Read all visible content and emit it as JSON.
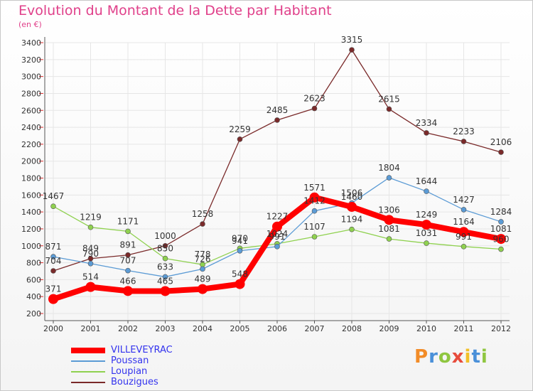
{
  "title": "Evolution du Montant de la Dette par Habitant",
  "unit": "(en €)",
  "logo": "Proxiti",
  "chart_data": {
    "type": "line",
    "title": "Evolution du Montant de la Dette par Habitant",
    "ylabel": "(en €)",
    "ylim": [
      200,
      3400
    ],
    "yticks": [
      200,
      400,
      600,
      800,
      1000,
      1200,
      1400,
      1600,
      1800,
      2000,
      2200,
      2400,
      2600,
      2800,
      3000,
      3200,
      3400
    ],
    "categories": [
      "2000",
      "2001",
      "2002",
      "2003",
      "2004",
      "2005",
      "2006",
      "2007",
      "2008",
      "2009",
      "2010",
      "2011",
      "2012"
    ],
    "grid": true,
    "legend": "bottom-left",
    "series": [
      {
        "name": "VILLEVEYRAC",
        "color": "#ff0000",
        "values": [
          371,
          514,
          466,
          465,
          489,
          548,
          1227,
          1571,
          1460,
          1306,
          1249,
          1164,
          1081
        ]
      },
      {
        "name": "Poussan",
        "color": "#5b9bd5",
        "values": [
          871,
          790,
          707,
          633,
          726,
          941,
          991,
          1412,
          1506,
          1804,
          1644,
          1427,
          1284
        ]
      },
      {
        "name": "Loupian",
        "color": "#8fd14f",
        "values": [
          1467,
          1219,
          1171,
          850,
          778,
          970,
          1024,
          1107,
          1194,
          1081,
          1031,
          991,
          960
        ]
      },
      {
        "name": "Bouzigues",
        "color": "#7a2a2a",
        "values": [
          704,
          849,
          891,
          1000,
          1258,
          2259,
          2485,
          2623,
          3315,
          2615,
          2334,
          2233,
          2106
        ]
      }
    ]
  }
}
